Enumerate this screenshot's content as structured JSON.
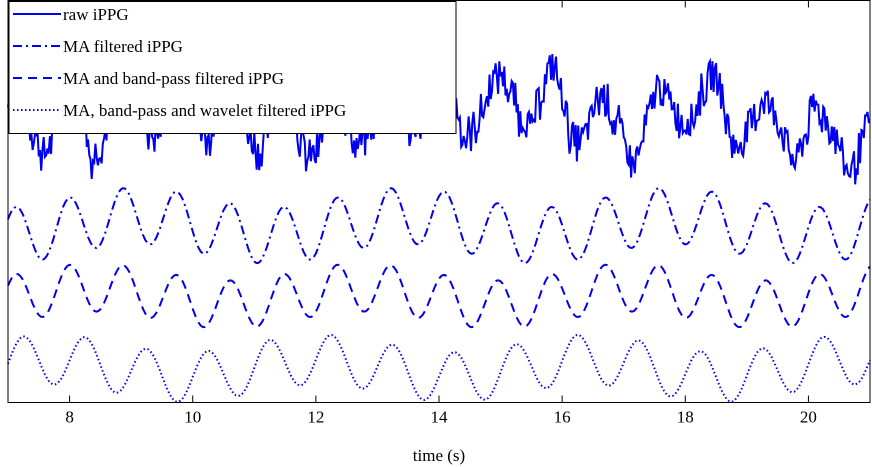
{
  "chart_data": {
    "type": "line",
    "title": "",
    "xlabel": "time (s)",
    "ylabel": "",
    "xlim": [
      7,
      21
    ],
    "x_ticks": [
      8,
      10,
      12,
      14,
      16,
      18,
      20
    ],
    "x_tick_labels": [
      "8",
      "10",
      "12",
      "14",
      "16",
      "18",
      "20"
    ],
    "y_ticks_shown": false,
    "grid": false,
    "legend_position": "top-left",
    "line_color": "#0000ee",
    "series": [
      {
        "name": "raw iPPG",
        "linestyle": "solid",
        "stack_level": 0.74,
        "amplitude": 0.075,
        "noise": 0.045,
        "freq_hz": 1.15,
        "phase": 0.3,
        "seed": 7
      },
      {
        "name": "MA filtered iPPG",
        "linestyle": "dashdot",
        "stack_level": 0.44,
        "amplitude": 0.07,
        "noise": 0.0,
        "freq_hz": 1.15,
        "phase": 0.3,
        "seed": 3
      },
      {
        "name": "MA and band-pass filtered iPPG",
        "linestyle": "dashed",
        "stack_level": 0.265,
        "amplitude": 0.06,
        "noise": 0.0,
        "freq_hz": 1.15,
        "phase": 0.3,
        "seed": 5
      },
      {
        "name": "MA, band-pass and wavelet filtered iPPG",
        "linestyle": "dotted",
        "stack_level": 0.085,
        "amplitude": 0.062,
        "noise": 0.0,
        "freq_hz": 1.0,
        "phase": 0.0,
        "seed": 9
      }
    ]
  }
}
